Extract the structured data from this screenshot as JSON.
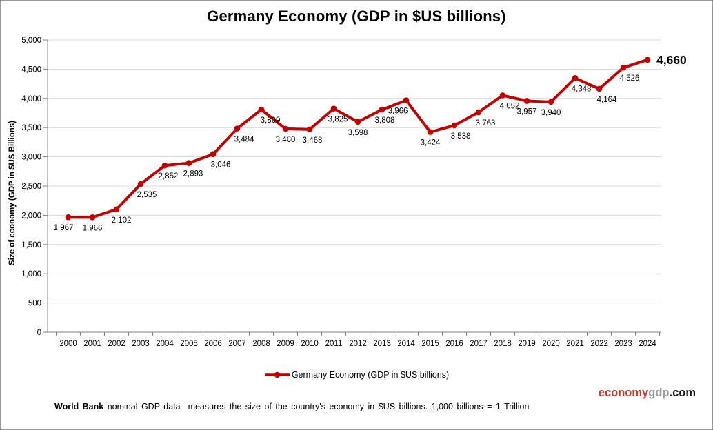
{
  "page": {
    "background": "#ffffff",
    "border_color": "#9a9a9a"
  },
  "chart_data": {
    "type": "line",
    "title": "Germany Economy (GDP in $US billions)",
    "xlabel": "",
    "ylabel": "Size of economy (GDP in $US Billions)",
    "x": [
      2000,
      2001,
      2002,
      2003,
      2004,
      2005,
      2006,
      2007,
      2008,
      2009,
      2010,
      2011,
      2012,
      2013,
      2014,
      2015,
      2016,
      2017,
      2018,
      2019,
      2020,
      2021,
      2022,
      2023,
      2024
    ],
    "series": [
      {
        "name": "Germany Economy (GDP in $US billions)",
        "color": "#C00000",
        "values": [
          1967,
          1966,
          2102,
          2535,
          2852,
          2893,
          3046,
          3484,
          3809,
          3480,
          3468,
          3825,
          3598,
          3808,
          3966,
          3424,
          3538,
          3763,
          4052,
          3957,
          3940,
          4348,
          4164,
          4526,
          4660
        ]
      }
    ],
    "data_labels": [
      "1,967",
      "1,966",
      "2,102",
      "2,535",
      "2,852",
      "2,893",
      "3,046",
      "3,484",
      "3,809",
      "3,480",
      "3,468",
      "3,825",
      "3,598",
      "3,808",
      "3,966",
      "3,424",
      "3,538",
      "3,763",
      "4,052",
      "3,957",
      "3,940",
      "4,348",
      "4,164",
      "4,526",
      "4,660"
    ],
    "final_label_bold": true,
    "ylim": [
      0,
      5000
    ],
    "ytick_interval": 500,
    "ytick_labels": [
      "0",
      "500",
      "1,000",
      "1,500",
      "2,000",
      "2,500",
      "3,000",
      "3,500",
      "4,000",
      "4,500",
      "5,000"
    ],
    "grid": "horizontal",
    "grid_color": "#D9D9D9",
    "axis_color": "#808080",
    "legend_position": "bottom"
  },
  "legend": {
    "label": "Germany Economy (GDP in $US billions)"
  },
  "footer": {
    "source": "World Bank",
    "text": " nominal GDP data  measures the size of the country's economy in $US billions. 1,000 billions = 1 Trillion"
  },
  "branding": {
    "economy": "economy",
    "gdp": "gdp",
    "com": ".com",
    "economy_color": "#C0392B",
    "gdp_color": "#999999",
    "com_color": "#1a1a1a"
  }
}
